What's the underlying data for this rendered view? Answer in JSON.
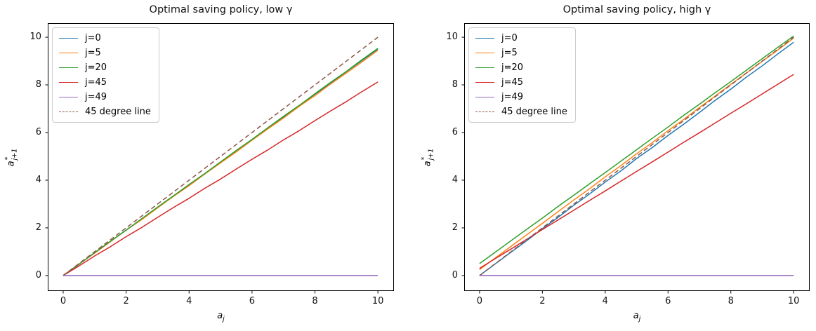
{
  "figure": {
    "background": "#ffffff"
  },
  "colors": {
    "blue": "#1f77b4",
    "orange": "#ff7f0e",
    "green": "#2ca02c",
    "red": "#d62728",
    "purple": "#9467bd",
    "brown": "#8c564b",
    "frame": "#000000",
    "legend_border": "#cccccc",
    "text": "#111111"
  },
  "chart_data": [
    {
      "type": "line",
      "title": "Optimal saving policy, low γ",
      "xlabel": {
        "base": "a",
        "sub": "j"
      },
      "ylabel": {
        "base": "a",
        "sup": "*",
        "sub": "j+1"
      },
      "xlim": [
        -0.49,
        10.51
      ],
      "ylim": [
        -0.65,
        10.59
      ],
      "grid": false,
      "legend_position": "upper left",
      "xticks": {
        "values": [
          0,
          2,
          4,
          6,
          8,
          10
        ],
        "labels": [
          "0",
          "2",
          "4",
          "6",
          "8",
          "10"
        ]
      },
      "yticks": {
        "values": [
          0,
          2,
          4,
          6,
          8,
          10
        ],
        "labels": [
          "0",
          "2",
          "4",
          "6",
          "8",
          "10"
        ]
      },
      "x": [
        0,
        0.5,
        1,
        1.5,
        2,
        2.5,
        3,
        3.5,
        4,
        4.5,
        5,
        5.5,
        6,
        6.5,
        7,
        7.5,
        8,
        8.5,
        9,
        9.5,
        10
      ],
      "series": [
        {
          "label": "j=0",
          "color": "#1f77b4",
          "dash": false,
          "y": [
            0,
            0.47,
            0.96,
            1.43,
            1.91,
            2.37,
            2.86,
            3.33,
            3.81,
            4.27,
            4.76,
            5.22,
            5.71,
            6.19,
            6.64,
            7.13,
            7.61,
            8.07,
            8.56,
            9.03,
            9.5
          ]
        },
        {
          "label": "j=5",
          "color": "#ff7f0e",
          "dash": false,
          "y": [
            0,
            0.48,
            0.94,
            1.42,
            1.9,
            2.35,
            2.84,
            3.32,
            3.77,
            4.26,
            4.73,
            5.19,
            5.68,
            6.15,
            6.61,
            7.1,
            7.55,
            8.04,
            8.5,
            8.97,
            9.45
          ]
        },
        {
          "label": "j=20",
          "color": "#2ca02c",
          "dash": false,
          "y": [
            0,
            0.47,
            0.96,
            1.44,
            1.9,
            2.39,
            2.87,
            3.34,
            3.82,
            4.28,
            4.77,
            5.25,
            5.71,
            6.2,
            6.68,
            7.14,
            7.63,
            8.11,
            8.57,
            9.06,
            9.53
          ]
        },
        {
          "label": "j=45",
          "color": "#d62728",
          "dash": false,
          "y": [
            0,
            0.4,
            0.82,
            1.21,
            1.63,
            2.02,
            2.44,
            2.85,
            3.24,
            3.66,
            4.05,
            4.47,
            4.88,
            5.27,
            5.69,
            6.08,
            6.5,
            6.91,
            7.3,
            7.72,
            8.12
          ]
        },
        {
          "label": "j=49",
          "color": "#9467bd",
          "dash": false,
          "y": [
            0,
            0,
            0,
            0,
            0,
            0,
            0,
            0,
            0,
            0,
            0,
            0,
            0,
            0,
            0,
            0,
            0,
            0,
            0,
            0,
            0
          ]
        },
        {
          "label": "45 degree line",
          "color": "#8c564b",
          "dash": true,
          "x": [
            0,
            10
          ],
          "y": [
            0,
            10
          ]
        }
      ]
    },
    {
      "type": "line",
      "title": "Optimal saving policy, high γ",
      "xlabel": {
        "base": "a",
        "sub": "j"
      },
      "ylabel": {
        "base": "a",
        "sup": "*",
        "sub": "j+1"
      },
      "xlim": [
        -0.49,
        10.51
      ],
      "ylim": [
        -0.65,
        10.59
      ],
      "grid": false,
      "legend_position": "upper left",
      "xticks": {
        "values": [
          0,
          2,
          4,
          6,
          8,
          10
        ],
        "labels": [
          "0",
          "2",
          "4",
          "6",
          "8",
          "10"
        ]
      },
      "yticks": {
        "values": [
          0,
          2,
          4,
          6,
          8,
          10
        ],
        "labels": [
          "0",
          "2",
          "4",
          "6",
          "8",
          "10"
        ]
      },
      "x": [
        0,
        0.5,
        1,
        1.5,
        2,
        2.5,
        3,
        3.5,
        4,
        4.5,
        5,
        5.5,
        6,
        6.5,
        7,
        7.5,
        8,
        8.5,
        9,
        9.5,
        10
      ],
      "series": [
        {
          "label": "j=0",
          "color": "#1f77b4",
          "dash": false,
          "y": [
            0,
            0.49,
            0.98,
            1.46,
            1.97,
            2.44,
            2.95,
            3.42,
            3.92,
            4.39,
            4.91,
            5.37,
            5.88,
            6.35,
            6.84,
            7.35,
            7.82,
            8.33,
            8.8,
            9.3,
            9.79
          ]
        },
        {
          "label": "j=5",
          "color": "#ff7f0e",
          "dash": false,
          "y": [
            0.25,
            0.74,
            1.22,
            1.71,
            2.19,
            2.68,
            3.17,
            3.64,
            4.14,
            4.61,
            5.11,
            5.58,
            6.08,
            6.55,
            7.05,
            7.53,
            8.02,
            8.5,
            8.99,
            9.47,
            9.97
          ]
        },
        {
          "label": "j=20",
          "color": "#2ca02c",
          "dash": false,
          "y": [
            0.5,
            0.98,
            1.46,
            1.94,
            2.41,
            2.9,
            3.37,
            3.85,
            4.32,
            4.8,
            5.28,
            5.76,
            6.23,
            6.72,
            7.19,
            7.67,
            8.14,
            8.62,
            9.1,
            9.58,
            10.05
          ]
        },
        {
          "label": "j=45",
          "color": "#d62728",
          "dash": false,
          "y": [
            0.3,
            0.71,
            1.11,
            1.52,
            1.93,
            2.33,
            2.74,
            3.15,
            3.55,
            3.96,
            4.37,
            4.77,
            5.18,
            5.59,
            5.99,
            6.4,
            6.81,
            7.21,
            7.62,
            8.03,
            8.44
          ]
        },
        {
          "label": "j=49",
          "color": "#9467bd",
          "dash": false,
          "y": [
            0,
            0,
            0,
            0,
            0,
            0,
            0,
            0,
            0,
            0,
            0,
            0,
            0,
            0,
            0,
            0,
            0,
            0,
            0,
            0,
            0
          ]
        },
        {
          "label": "45 degree line",
          "color": "#8c564b",
          "dash": true,
          "x": [
            0,
            10
          ],
          "y": [
            0,
            10
          ]
        }
      ]
    }
  ]
}
